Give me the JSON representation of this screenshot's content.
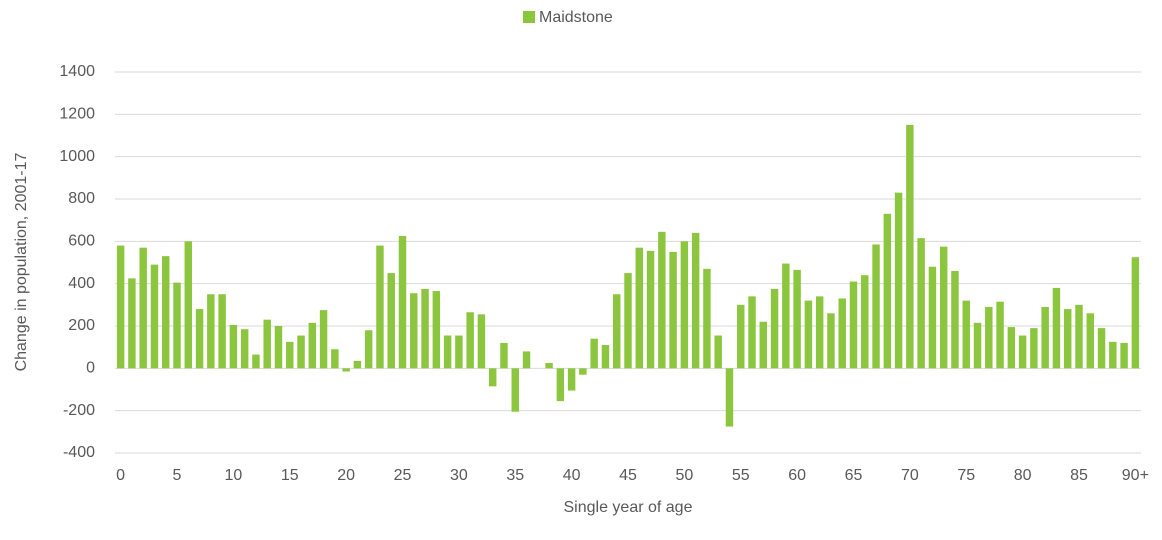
{
  "chart_data": {
    "type": "bar",
    "x_label": "Single year of age",
    "y_label": "Change in population, 2001-17",
    "categories": [
      "0",
      null,
      null,
      null,
      null,
      "5",
      null,
      null,
      null,
      null,
      "10",
      null,
      null,
      null,
      null,
      "15",
      null,
      null,
      null,
      null,
      "20",
      null,
      null,
      null,
      null,
      "25",
      null,
      null,
      null,
      null,
      "30",
      null,
      null,
      null,
      null,
      "35",
      null,
      null,
      null,
      null,
      "40",
      null,
      null,
      null,
      null,
      "45",
      null,
      null,
      null,
      null,
      "50",
      null,
      null,
      null,
      null,
      "55",
      null,
      null,
      null,
      null,
      "60",
      null,
      null,
      null,
      null,
      "65",
      null,
      null,
      null,
      null,
      "70",
      null,
      null,
      null,
      null,
      "75",
      null,
      null,
      null,
      null,
      "80",
      null,
      null,
      null,
      null,
      "85",
      null,
      null,
      null,
      null,
      "90+"
    ],
    "series": [
      {
        "name": "Maidstone",
        "color": "#8cc63e",
        "values": [
          580,
          425,
          570,
          490,
          530,
          405,
          600,
          280,
          350,
          350,
          205,
          185,
          65,
          230,
          200,
          125,
          155,
          215,
          275,
          90,
          -15,
          35,
          180,
          580,
          450,
          625,
          355,
          375,
          365,
          155,
          155,
          265,
          255,
          -85,
          120,
          -205,
          80,
          0,
          25,
          -155,
          -105,
          -30,
          140,
          110,
          350,
          450,
          570,
          555,
          645,
          550,
          600,
          640,
          470,
          155,
          -275,
          300,
          340,
          220,
          375,
          495,
          465,
          320,
          340,
          260,
          330,
          410,
          440,
          585,
          730,
          830,
          1150,
          615,
          480,
          575,
          460,
          320,
          215,
          290,
          315,
          195,
          155,
          190,
          290,
          380,
          280,
          300,
          260,
          190,
          125,
          120,
          525
        ]
      }
    ],
    "ylim": [
      -400,
      1400
    ],
    "yticks": [
      -400,
      -200,
      0,
      200,
      400,
      600,
      800,
      1000,
      1200,
      1400
    ],
    "grid": true,
    "legend": "top"
  }
}
